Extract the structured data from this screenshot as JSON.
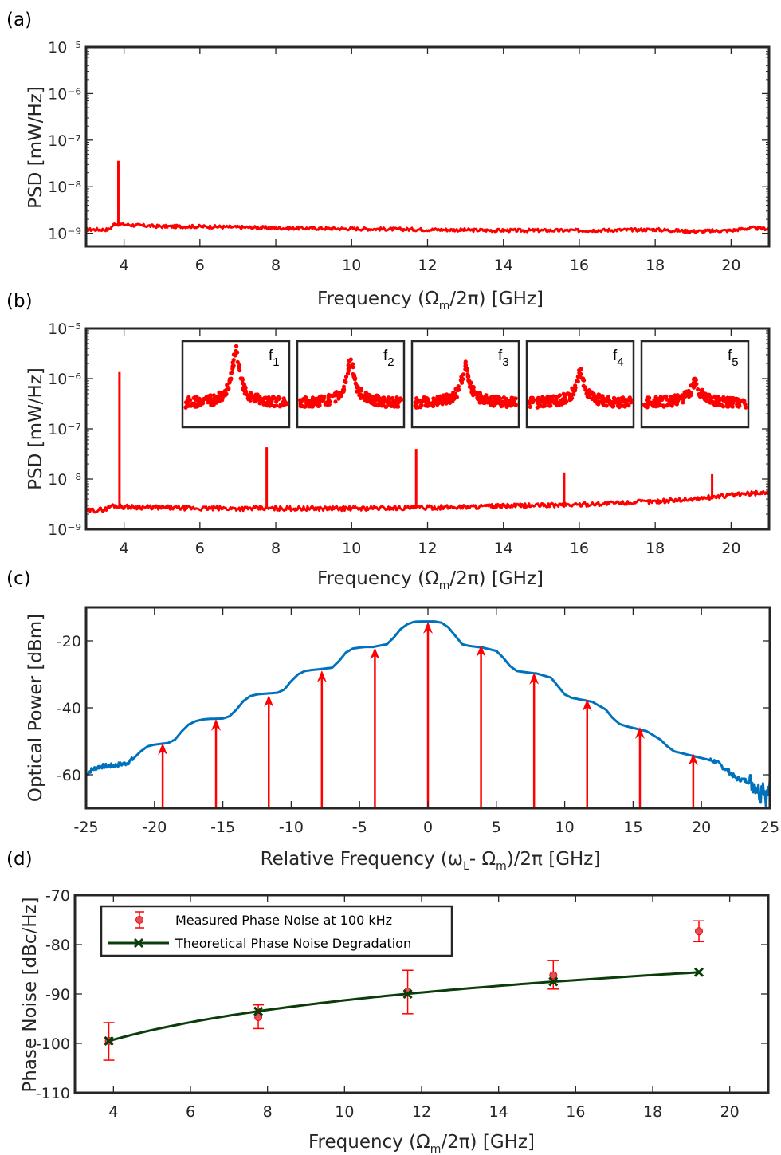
{
  "chart_data": [
    {
      "panel": "(a)",
      "type": "line",
      "yscale": "log",
      "xlabel": "Frequency (Ω_m/2π) [GHz]",
      "xlabel_main": "Frequency (Ω",
      "xlabel_sub": "m",
      "xlabel_tail": "/2π) [GHz]",
      "ylabel": "PSD [mW/Hz]",
      "xlim": [
        3,
        21
      ],
      "ylim_exp": [
        -9.28,
        -5
      ],
      "xticks": [
        4,
        6,
        8,
        10,
        12,
        14,
        16,
        18,
        20
      ],
      "yticks_exp": [
        -5,
        -6,
        -7,
        -8,
        -9
      ],
      "color": "#ff0000",
      "baseline": {
        "x": [
          3,
          3.6,
          3.75,
          4.2,
          5,
          6,
          7,
          8,
          10,
          12,
          14,
          16,
          18,
          19,
          20,
          20.5,
          21
        ],
        "y": [
          1.2e-09,
          1.2e-09,
          1.6e-09,
          1.5e-09,
          1.4e-09,
          1.4e-09,
          1.35e-09,
          1.3e-09,
          1.25e-09,
          1.2e-09,
          1.15e-09,
          1.15e-09,
          1.2e-09,
          1.1e-09,
          1.15e-09,
          1.3e-09,
          1.25e-09
        ]
      },
      "peaks": [
        {
          "x": 3.85,
          "y": 3.6e-08
        }
      ]
    },
    {
      "panel": "(b)",
      "type": "line",
      "yscale": "log",
      "xlabel": "Frequency (Ω_m/2π) [GHz]",
      "xlabel_main": "Frequency (Ω",
      "xlabel_sub": "m",
      "xlabel_tail": "/2π) [GHz]",
      "ylabel": "PSD [mW/Hz]",
      "xlim": [
        3,
        21
      ],
      "ylim_exp": [
        -9,
        -5
      ],
      "xticks": [
        4,
        6,
        8,
        10,
        12,
        14,
        16,
        18,
        20
      ],
      "yticks_exp": [
        -5,
        -6,
        -7,
        -8,
        -9
      ],
      "color": "#ff0000",
      "baseline": {
        "x": [
          3,
          3.5,
          3.7,
          4,
          6,
          8,
          10,
          12,
          14,
          16,
          18,
          19,
          20,
          21
        ],
        "y": [
          2.3e-09,
          2.5e-09,
          3e-09,
          2.8e-09,
          2.6e-09,
          2.6e-09,
          2.6e-09,
          2.7e-09,
          2.9e-09,
          3.1e-09,
          3.6e-09,
          4e-09,
          4.8e-09,
          5.5e-09
        ]
      },
      "peaks": [
        {
          "x": 3.88,
          "y": 1.35e-06
        },
        {
          "x": 7.76,
          "y": 4.3e-08
        },
        {
          "x": 11.7,
          "y": 4e-08
        },
        {
          "x": 15.6,
          "y": 1.35e-08
        },
        {
          "x": 19.5,
          "y": 1.25e-08
        }
      ],
      "insets": [
        {
          "label": "f",
          "sub": "1",
          "peak_rel": 0.78
        },
        {
          "label": "f",
          "sub": "2",
          "peak_rel": 0.66
        },
        {
          "label": "f",
          "sub": "3",
          "peak_rel": 0.6
        },
        {
          "label": "f",
          "sub": "4",
          "peak_rel": 0.52
        },
        {
          "label": "f",
          "sub": "5",
          "peak_rel": 0.4
        }
      ]
    },
    {
      "panel": "(c)",
      "type": "line",
      "xlabel": "Relative Frequency (ω_L- Ω_m)/2π [GHz]",
      "xlabel_parts": [
        "Relative Frequency (ω",
        "L",
        "- Ω",
        "m",
        ")/2π [GHz]"
      ],
      "ylabel": "Optical Power [dBm]",
      "xlim": [
        -25,
        25
      ],
      "ylim": [
        -70,
        -10
      ],
      "xticks": [
        -25,
        -20,
        -15,
        -10,
        -5,
        0,
        5,
        10,
        15,
        20,
        25
      ],
      "yticks": [
        -20,
        -40,
        -60
      ],
      "spectrum_color": "#0072bd",
      "arrow_color": "#ff0000",
      "comb_lines": [
        {
          "x": -19.4,
          "y": -50.5
        },
        {
          "x": -15.5,
          "y": -43.3
        },
        {
          "x": -11.64,
          "y": -36.2
        },
        {
          "x": -7.76,
          "y": -28.8
        },
        {
          "x": -3.88,
          "y": -22.0
        },
        {
          "x": 0,
          "y": -14.3
        },
        {
          "x": 3.88,
          "y": -21.2
        },
        {
          "x": 7.76,
          "y": -29.5
        },
        {
          "x": 11.64,
          "y": -37.4
        },
        {
          "x": 15.5,
          "y": -45.7
        },
        {
          "x": 19.4,
          "y": -53.6
        }
      ],
      "spectrum": {
        "x": [
          -25,
          -24.6,
          -24,
          -23,
          -22,
          -21.5,
          -21,
          -20.5,
          -20,
          -19,
          -18.5,
          -18,
          -17.5,
          -17,
          -16.5,
          -16,
          -15,
          -14.5,
          -14,
          -13.5,
          -13,
          -12.5,
          -12,
          -11,
          -10.5,
          -10,
          -9.5,
          -9,
          -8.5,
          -8,
          -7,
          -6.5,
          -6,
          -5.5,
          -5,
          -4.5,
          -4,
          -3,
          -2.5,
          -2,
          -1.5,
          -1,
          -0.5,
          0,
          0.5,
          1,
          1.5,
          2,
          2.5,
          3,
          4,
          5,
          5.5,
          6,
          6.5,
          7,
          8,
          9,
          9.5,
          10,
          10.5,
          11,
          12,
          13,
          13.5,
          14,
          14.5,
          15,
          16,
          17,
          17.5,
          18,
          18.5,
          19,
          20,
          21,
          22,
          22.5,
          23,
          23.5,
          24,
          24.3,
          24.5,
          24.7,
          25
        ],
        "y": [
          -60,
          -58.5,
          -57.5,
          -57.3,
          -56.5,
          -55,
          -53,
          -51.5,
          -51,
          -50.5,
          -49.5,
          -47,
          -45,
          -44,
          -43.5,
          -43.3,
          -43.2,
          -42.5,
          -40.5,
          -38,
          -36.5,
          -36,
          -35.8,
          -35.5,
          -34.5,
          -32,
          -30,
          -29,
          -28.7,
          -28.5,
          -28,
          -26,
          -23.5,
          -22.3,
          -22,
          -21.8,
          -21.8,
          -21,
          -19,
          -16.5,
          -15,
          -14.3,
          -14.2,
          -14.2,
          -14.2,
          -14.6,
          -16,
          -18.5,
          -21,
          -21.5,
          -22,
          -23,
          -25,
          -27.5,
          -29,
          -29.3,
          -29.8,
          -31,
          -33.5,
          -36,
          -37,
          -37.4,
          -38.2,
          -40.5,
          -43,
          -44.8,
          -45.5,
          -46,
          -47,
          -49.5,
          -51.5,
          -53,
          -53.5,
          -54,
          -55,
          -56,
          -59,
          -61,
          -61.5,
          -62,
          -63,
          -66,
          -62,
          -67,
          -64
        ]
      }
    },
    {
      "panel": "(d)",
      "type": "scatter",
      "xlabel": "Frequency (Ω_m/2π) [GHz]",
      "xlabel_main": "Frequency (Ω",
      "xlabel_sub": "m",
      "xlabel_tail": "/2π) [GHz]",
      "ylabel": "Phase Noise [dBc/Hz]",
      "xlim": [
        3,
        21
      ],
      "ylim": [
        -110,
        -70
      ],
      "xticks": [
        4,
        6,
        8,
        10,
        12,
        14,
        16,
        18,
        20
      ],
      "yticks": [
        -70,
        -80,
        -90,
        -100,
        -110
      ],
      "legend_position": "top-left",
      "series": [
        {
          "name": "Measured Phase Noise at 100 kHz",
          "type": "errorbar",
          "color": "#ff0000",
          "marker_fill": "#e0505a",
          "x": [
            3.88,
            7.76,
            11.64,
            15.42,
            19.2
          ],
          "y": [
            -99.5,
            -94.7,
            -89.5,
            -86.2,
            -77.3
          ],
          "err_low": [
            -103.4,
            -97.0,
            -94.0,
            -89.0,
            -79.4
          ],
          "err_high": [
            -95.8,
            -92.2,
            -85.2,
            -83.2,
            -75.2
          ]
        },
        {
          "name": "Theoretical Phase Noise Degradation",
          "type": "line",
          "color": "#0a3d0a",
          "x": [
            3.88,
            7.76,
            11.64,
            15.42,
            19.2
          ],
          "y": [
            -99.5,
            -93.5,
            -90.0,
            -87.5,
            -85.6
          ]
        }
      ]
    }
  ],
  "panel_labels": [
    "(a)",
    "(b)",
    "(c)",
    "(d)"
  ]
}
